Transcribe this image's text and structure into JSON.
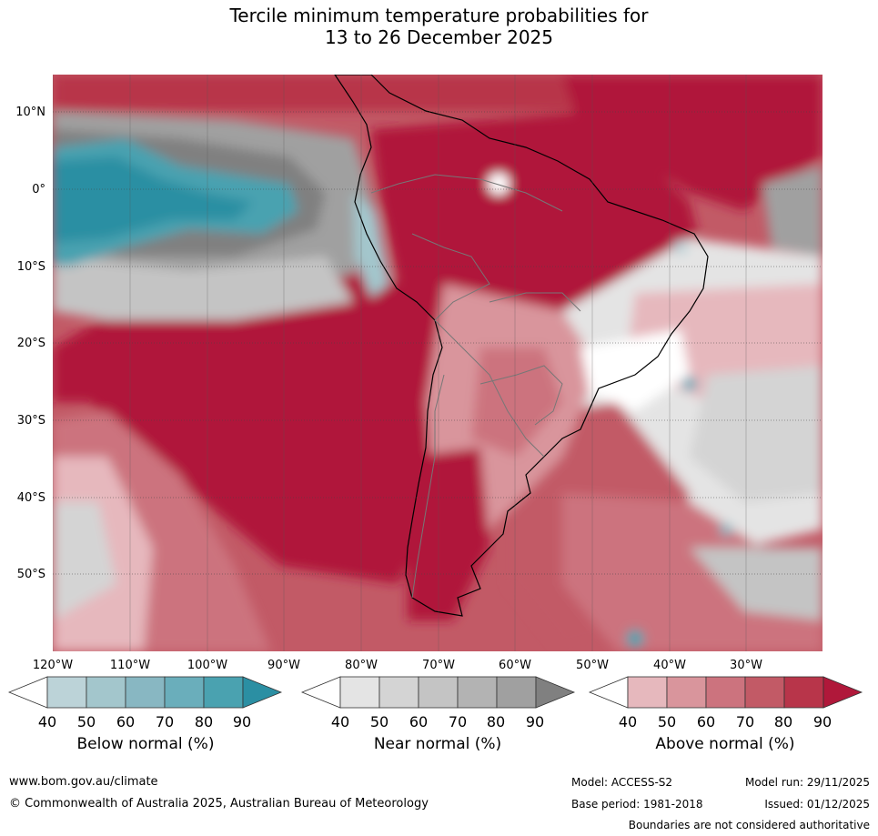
{
  "title": {
    "line1": "Tercile minimum temperature probabilities for",
    "line2": "13 to 26 December 2025"
  },
  "map": {
    "lat_labels": [
      "10°N",
      "0°",
      "10°S",
      "20°S",
      "30°S",
      "40°S",
      "50°S"
    ],
    "lon_labels": [
      "120°W",
      "110°W",
      "100°W",
      "90°W",
      "80°W",
      "70°W",
      "60°W",
      "50°W",
      "40°W",
      "30°W"
    ]
  },
  "colorbars": {
    "below": {
      "label": "Below normal (%)",
      "ticks": [
        "40",
        "50",
        "60",
        "70",
        "80",
        "90"
      ],
      "colors": [
        "#ffffff",
        "#bcd3d8",
        "#a3c6cc",
        "#88b7c2",
        "#6aaebb",
        "#4aa2b0",
        "#2b8fa3"
      ]
    },
    "near": {
      "label": "Near normal (%)",
      "ticks": [
        "40",
        "50",
        "60",
        "70",
        "80",
        "90"
      ],
      "colors": [
        "#ffffff",
        "#e4e4e4",
        "#d4d4d4",
        "#c4c4c4",
        "#b3b3b3",
        "#a0a0a0",
        "#808080"
      ]
    },
    "above": {
      "label": "Above normal (%)",
      "ticks": [
        "40",
        "50",
        "60",
        "70",
        "80",
        "90"
      ],
      "colors": [
        "#ffffff",
        "#e6b8bd",
        "#d9959c",
        "#cc737e",
        "#c25a66",
        "#b8354a",
        "#b0183a"
      ]
    }
  },
  "footer": {
    "website": "www.bom.gov.au/climate",
    "copyright": "© Commonwealth of Australia 2025, Australian Bureau of Meteorology",
    "model": "Model: ACCESS-S2",
    "model_run": "Model run: 29/11/2025",
    "base_period": "Base period: 1981-2018",
    "issued": "Issued: 01/12/2025",
    "disclaimer": "Boundaries are not considered authoritative"
  }
}
